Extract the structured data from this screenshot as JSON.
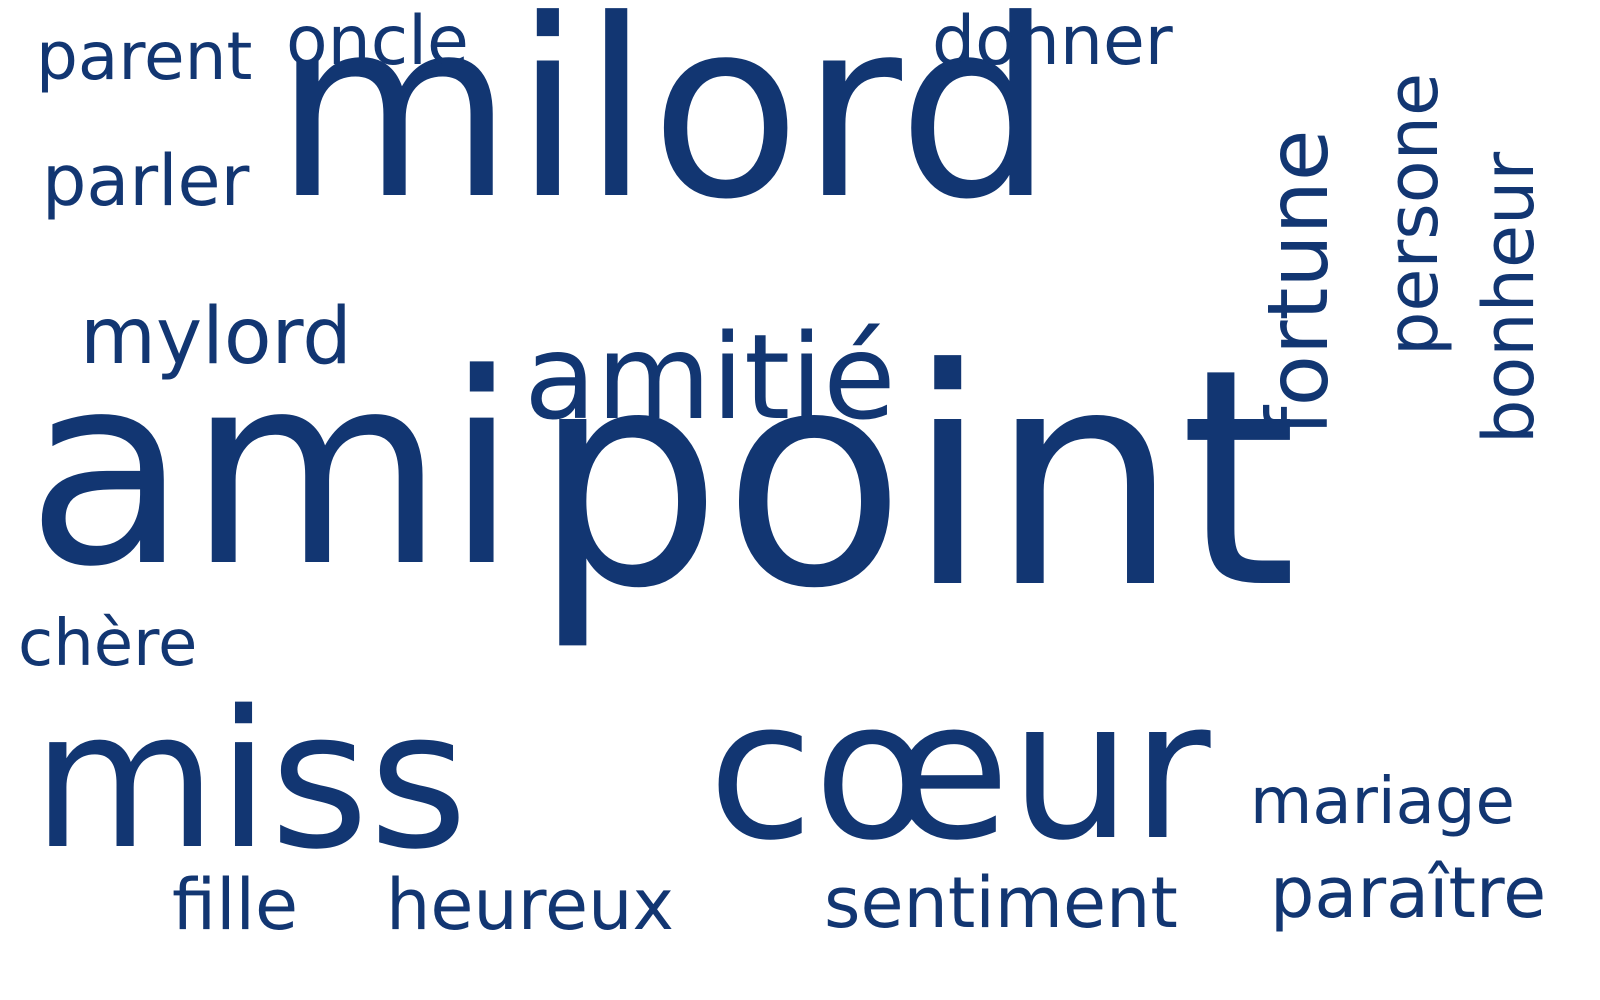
{
  "color": "#123672",
  "words": [
    {
      "id": "point",
      "text": "point"
    },
    {
      "id": "ami",
      "text": "ami"
    },
    {
      "id": "milord",
      "text": "milord"
    },
    {
      "id": "coeur",
      "text": "cœur"
    },
    {
      "id": "miss",
      "text": "miss"
    },
    {
      "id": "amitie",
      "text": "amitié"
    },
    {
      "id": "fortune",
      "text": "fortune"
    },
    {
      "id": "persone",
      "text": "persone"
    },
    {
      "id": "bonheur",
      "text": "bonheur"
    },
    {
      "id": "mylord",
      "text": "mylord"
    },
    {
      "id": "parler",
      "text": "parler"
    },
    {
      "id": "parent",
      "text": "parent"
    },
    {
      "id": "oncle",
      "text": "oncle"
    },
    {
      "id": "donner",
      "text": "donner"
    },
    {
      "id": "chere",
      "text": "chère"
    },
    {
      "id": "mariage",
      "text": "mariage"
    },
    {
      "id": "fille",
      "text": "fille"
    },
    {
      "id": "heureux",
      "text": "heureux"
    },
    {
      "id": "sentiment",
      "text": "sentiment"
    },
    {
      "id": "paraitre",
      "text": "paraître"
    }
  ]
}
